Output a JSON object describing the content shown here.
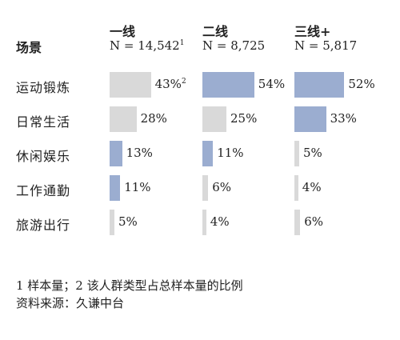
{
  "scene_header": "场景",
  "columns": [
    {
      "name": "一线",
      "n_label": "N = 14,542",
      "n_sup": "1"
    },
    {
      "name": "二线",
      "n_label": "N = 8,725",
      "n_sup": ""
    },
    {
      "name": "三线+",
      "n_label": "N = 5,817",
      "n_sup": ""
    }
  ],
  "rows": [
    {
      "label": "运动锻炼",
      "values": [
        "43%",
        "54%",
        "52%"
      ],
      "value_sup": [
        "2",
        "",
        ""
      ]
    },
    {
      "label": "日常生活",
      "values": [
        "28%",
        "25%",
        "33%"
      ],
      "value_sup": [
        "",
        "",
        ""
      ]
    },
    {
      "label": "休闲娱乐",
      "values": [
        "13%",
        "11%",
        "5%"
      ],
      "value_sup": [
        "",
        "",
        ""
      ]
    },
    {
      "label": "工作通勤",
      "values": [
        "11%",
        "6%",
        "4%"
      ],
      "value_sup": [
        "",
        "",
        ""
      ]
    },
    {
      "label": "旅游出行",
      "values": [
        "5%",
        "4%",
        "6%"
      ],
      "value_sup": [
        "",
        "",
        ""
      ]
    }
  ],
  "footnote": "1 样本量；2 该人群类型占总样本量的比例",
  "source": "资料来源：久谦中台",
  "colors": {
    "gray": "#d9d9d9",
    "blue": "#9badd0",
    "text": "#222222"
  },
  "chart_data": {
    "type": "bar",
    "categories": [
      "运动锻炼",
      "日常生活",
      "休闲娱乐",
      "工作通勤",
      "旅游出行"
    ],
    "series": [
      {
        "name": "一线",
        "values": [
          43,
          28,
          13,
          11,
          5
        ],
        "colors": [
          "gray",
          "gray",
          "blue",
          "blue",
          "gray"
        ]
      },
      {
        "name": "二线",
        "values": [
          54,
          25,
          11,
          6,
          4
        ],
        "colors": [
          "blue",
          "gray",
          "blue",
          "gray",
          "gray"
        ]
      },
      {
        "name": "三线+",
        "values": [
          52,
          33,
          5,
          4,
          6
        ],
        "colors": [
          "blue",
          "blue",
          "gray",
          "gray",
          "gray"
        ]
      }
    ],
    "unit": "%"
  }
}
